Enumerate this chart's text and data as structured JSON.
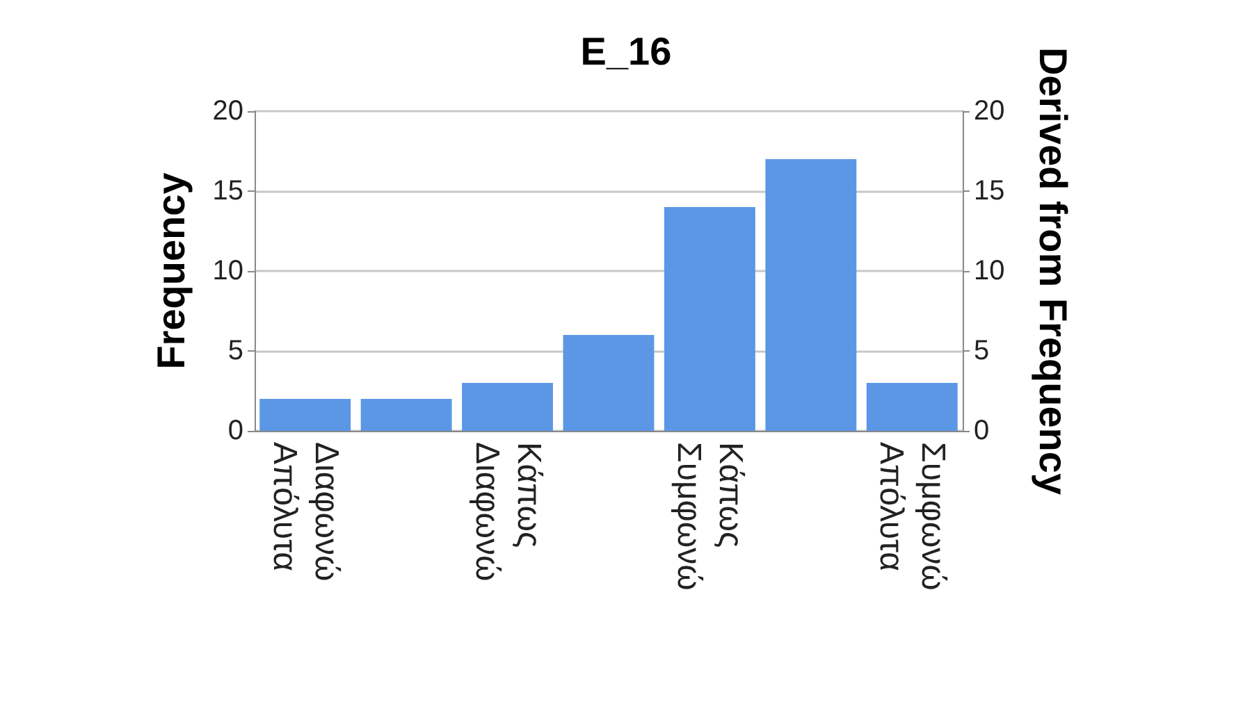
{
  "chart_data": {
    "type": "bar",
    "title": "E_16",
    "ylabel": "Frequency",
    "y2label": "Derived from Frequency",
    "categories": [
      "Διαφωνώ\nΑπόλυτα",
      null,
      "Κάπως\nΔιαφωνώ",
      null,
      "Κάπως\nΣυμφωνώ",
      null,
      "Συμφωνώ\nΑπόλυτα"
    ],
    "values": [
      2,
      2,
      3,
      6,
      14,
      17,
      3
    ],
    "color": "#5b97e5",
    "ylim": [
      0,
      20
    ],
    "yticks": [
      0,
      5,
      10,
      15,
      20
    ],
    "y2lim": [
      0,
      20
    ],
    "y2ticks": [
      0,
      5,
      10,
      15,
      20
    ],
    "grid": "y"
  }
}
